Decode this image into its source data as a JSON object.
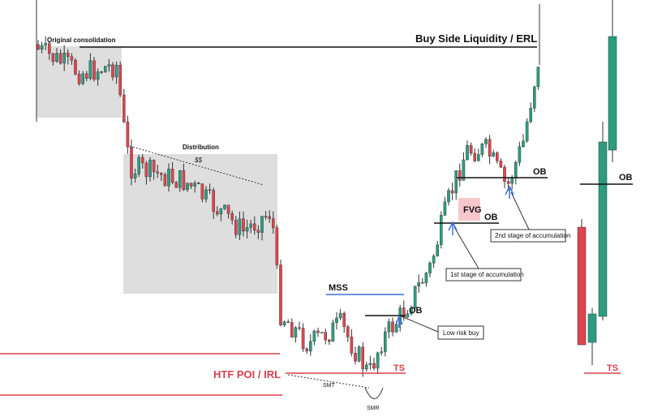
{
  "labels": {
    "consolidation": "Original consolidation",
    "distribution": "Distribution",
    "dollars": "$$",
    "bsl": "Buy Side Liquidity / ERL",
    "mss": "MSS",
    "ob1": "OB",
    "ob2": "OB",
    "ob3": "OB",
    "ob4": "OB",
    "fvg": "FVG",
    "low_risk": "Low risk buy",
    "stage1": "1st stage of accumulation",
    "stage2": "2nd stage of accumulation",
    "ts1": "TS",
    "ts2": "TS",
    "htf": "HTF POI / IRL",
    "smt": "SMT",
    "smr": "SMR"
  }
}
